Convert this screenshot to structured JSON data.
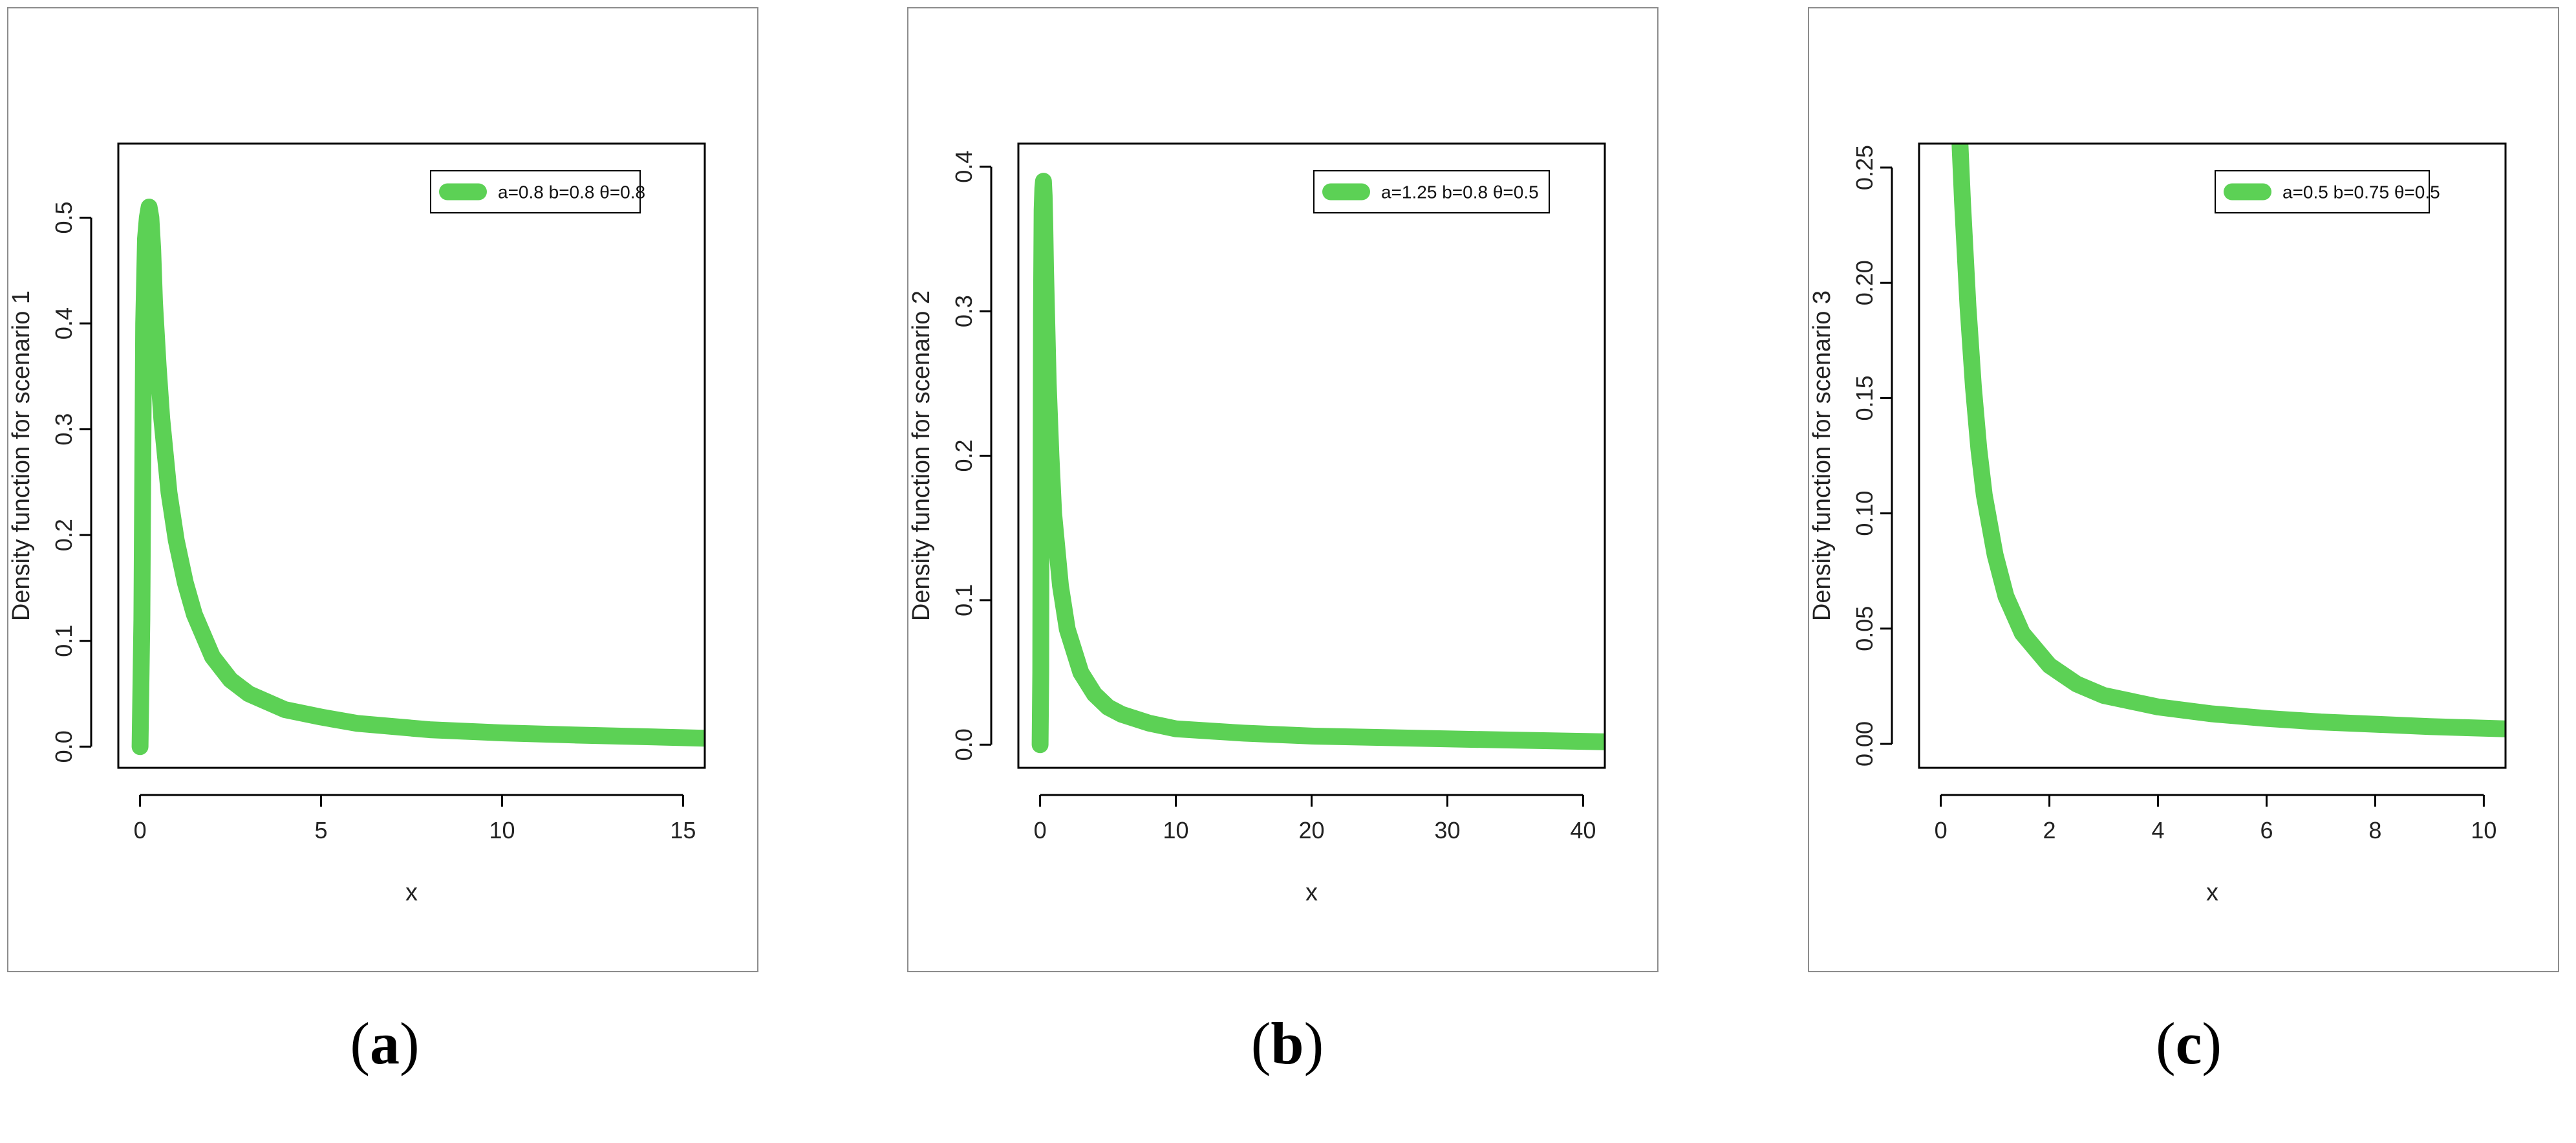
{
  "figure": {
    "captions": [
      {
        "open": "(",
        "letter": "a",
        "close": ")"
      },
      {
        "open": "(",
        "letter": "b",
        "close": ")"
      },
      {
        "open": "(",
        "letter": "c",
        "close": ")"
      }
    ]
  },
  "chart_data": [
    {
      "type": "line",
      "xlabel": "x",
      "ylabel": "Density function for scenario 1",
      "xlim": [
        -0.6,
        15.6
      ],
      "ylim": [
        -0.02,
        0.57
      ],
      "xticks": [
        "0",
        "5",
        "10",
        "15"
      ],
      "xtick_values": [
        0,
        5,
        10,
        15
      ],
      "yticks": [
        "0.0",
        "0.1",
        "0.2",
        "0.3",
        "0.4",
        "0.5"
      ],
      "ytick_values": [
        0,
        0.1,
        0.2,
        0.3,
        0.4,
        0.5
      ],
      "legend": {
        "label": "a=0.8  b=0.8  θ=0.8",
        "placement": "top-right"
      },
      "color": "#5cd155",
      "series": [
        {
          "x": [
            0,
            0.05,
            0.1,
            0.15,
            0.2,
            0.25,
            0.3,
            0.35,
            0.4,
            0.5,
            0.6,
            0.8,
            1,
            1.25,
            1.5,
            2,
            2.5,
            3,
            4,
            5,
            6,
            7,
            8,
            10,
            12,
            15.6
          ],
          "y": [
            0,
            0.12,
            0.4,
            0.48,
            0.5,
            0.51,
            0.5,
            0.47,
            0.42,
            0.36,
            0.31,
            0.24,
            0.195,
            0.155,
            0.125,
            0.085,
            0.063,
            0.05,
            0.035,
            0.028,
            0.022,
            0.019,
            0.016,
            0.013,
            0.011,
            0.008
          ]
        }
      ]
    },
    {
      "type": "line",
      "xlabel": "x",
      "ylabel": "Density function for scenario 2",
      "xlim": [
        -1.6,
        41.6
      ],
      "ylim": [
        -0.016,
        0.416
      ],
      "xticks": [
        "0",
        "10",
        "20",
        "30",
        "40"
      ],
      "xtick_values": [
        0,
        10,
        20,
        30,
        40
      ],
      "yticks": [
        "0.0",
        "0.1",
        "0.2",
        "0.3",
        "0.4"
      ],
      "ytick_values": [
        0,
        0.1,
        0.2,
        0.3,
        0.4
      ],
      "legend": {
        "label": "a=1.25  b=0.8  θ=0.5",
        "placement": "top-right"
      },
      "color": "#5cd155",
      "series": [
        {
          "x": [
            0,
            0.05,
            0.1,
            0.15,
            0.2,
            0.25,
            0.3,
            0.35,
            0.4,
            0.5,
            0.6,
            0.8,
            1,
            1.5,
            2,
            3,
            4,
            5,
            6,
            8,
            10,
            15,
            20,
            30,
            41.6
          ],
          "y": [
            0,
            0.05,
            0.3,
            0.37,
            0.385,
            0.39,
            0.38,
            0.36,
            0.33,
            0.29,
            0.25,
            0.2,
            0.16,
            0.11,
            0.08,
            0.05,
            0.035,
            0.026,
            0.021,
            0.015,
            0.011,
            0.008,
            0.006,
            0.004,
            0.002
          ]
        }
      ]
    },
    {
      "type": "line",
      "xlabel": "x",
      "ylabel": "Density function for scenario 3",
      "xlim": [
        -0.4,
        10.4
      ],
      "ylim": [
        -0.0104,
        0.2604
      ],
      "xticks": [
        "0",
        "2",
        "4",
        "6",
        "8",
        "10"
      ],
      "xtick_values": [
        0,
        2,
        4,
        6,
        8,
        10
      ],
      "yticks": [
        "0.00",
        "0.05",
        "0.10",
        "0.15",
        "0.20",
        "0.25"
      ],
      "ytick_values": [
        0,
        0.05,
        0.1,
        0.15,
        0.2,
        0.25
      ],
      "legend": {
        "label": "a=0.5  b=0.75  θ=0.5",
        "placement": "top-right"
      },
      "color": "#5cd155",
      "series": [
        {
          "x": [
            0.35,
            0.4,
            0.5,
            0.6,
            0.7,
            0.8,
            1,
            1.2,
            1.5,
            2,
            2.5,
            3,
            4,
            5,
            6,
            7,
            8,
            9,
            10.4
          ],
          "y": [
            0.262,
            0.235,
            0.19,
            0.155,
            0.128,
            0.108,
            0.082,
            0.064,
            0.048,
            0.034,
            0.026,
            0.021,
            0.016,
            0.013,
            0.011,
            0.0095,
            0.0085,
            0.0075,
            0.0065
          ]
        }
      ]
    }
  ]
}
